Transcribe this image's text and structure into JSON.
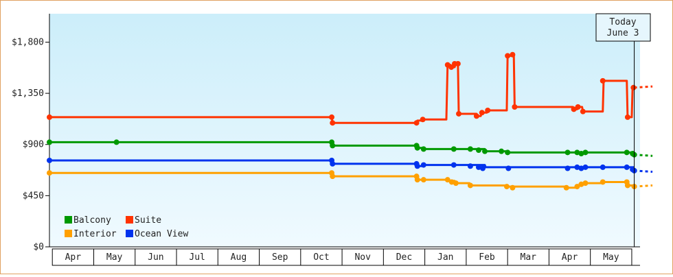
{
  "chart_data": {
    "type": "line",
    "title": "",
    "xlabel": "",
    "ylabel": "",
    "ylim": [
      0,
      2050
    ],
    "y_ticks": [
      0,
      450,
      900,
      1350,
      1800
    ],
    "y_tick_labels": [
      "$0",
      "$450",
      "$900",
      "$1,350",
      "$1,800"
    ],
    "x_domain": [
      -0.07,
      14.2
    ],
    "month_labels": [
      "Apr",
      "May",
      "Jun",
      "Jul",
      "Aug",
      "Sep",
      "Oct",
      "Nov",
      "Dec",
      "Jan",
      "Feb",
      "Mar",
      "Apr",
      "May"
    ],
    "today_label": [
      "Today",
      "June 3"
    ],
    "today_x": 14.06,
    "grid": false,
    "legend_placement": "bottom-left",
    "series": [
      {
        "name": "Suite",
        "color": "#ff3300",
        "points": [
          [
            -0.07,
            1140
          ],
          [
            6.75,
            1140
          ],
          [
            6.77,
            1090
          ],
          [
            8.8,
            1090
          ],
          [
            8.82,
            1110
          ],
          [
            8.95,
            1110
          ],
          [
            8.97,
            1120
          ],
          [
            9.52,
            1120
          ],
          [
            9.55,
            1600
          ],
          [
            9.62,
            1600
          ],
          [
            9.64,
            1580
          ],
          [
            9.72,
            1580
          ],
          [
            9.75,
            1610
          ],
          [
            9.8,
            1610
          ],
          [
            9.82,
            1170
          ],
          [
            10.25,
            1170
          ],
          [
            10.27,
            1150
          ],
          [
            10.35,
            1150
          ],
          [
            10.38,
            1180
          ],
          [
            10.5,
            1180
          ],
          [
            10.52,
            1200
          ],
          [
            10.98,
            1200
          ],
          [
            11.0,
            1680
          ],
          [
            11.1,
            1680
          ],
          [
            11.12,
            1690
          ],
          [
            11.15,
            1690
          ],
          [
            11.17,
            1230
          ],
          [
            12.58,
            1230
          ],
          [
            12.6,
            1210
          ],
          [
            12.68,
            1210
          ],
          [
            12.7,
            1230
          ],
          [
            12.8,
            1230
          ],
          [
            12.82,
            1190
          ],
          [
            13.3,
            1190
          ],
          [
            13.32,
            1460
          ],
          [
            13.88,
            1460
          ],
          [
            13.9,
            1140
          ],
          [
            14.0,
            1140
          ],
          [
            14.02,
            1400
          ],
          [
            14.06,
            1400
          ]
        ],
        "markers": [
          [
            -0.07,
            1140
          ],
          [
            6.75,
            1140
          ],
          [
            6.77,
            1090
          ],
          [
            8.8,
            1090
          ],
          [
            8.95,
            1120
          ],
          [
            9.55,
            1600
          ],
          [
            9.64,
            1580
          ],
          [
            9.72,
            1610
          ],
          [
            9.8,
            1610
          ],
          [
            9.82,
            1170
          ],
          [
            10.25,
            1150
          ],
          [
            10.38,
            1180
          ],
          [
            10.52,
            1200
          ],
          [
            11.0,
            1680
          ],
          [
            11.12,
            1690
          ],
          [
            11.17,
            1230
          ],
          [
            12.6,
            1210
          ],
          [
            12.7,
            1230
          ],
          [
            12.82,
            1190
          ],
          [
            13.3,
            1460
          ],
          [
            13.9,
            1140
          ],
          [
            14.04,
            1400
          ]
        ],
        "projection": [
          [
            14.06,
            1400
          ],
          [
            14.5,
            1410
          ]
        ]
      },
      {
        "name": "Balcony",
        "color": "#009900",
        "points": [
          [
            -0.07,
            920
          ],
          [
            6.75,
            920
          ],
          [
            6.77,
            890
          ],
          [
            8.8,
            890
          ],
          [
            8.82,
            870
          ],
          [
            8.95,
            870
          ],
          [
            8.97,
            860
          ],
          [
            10.45,
            860
          ],
          [
            10.47,
            840
          ],
          [
            11.0,
            840
          ],
          [
            11.02,
            830
          ],
          [
            14.06,
            830
          ]
        ],
        "markers": [
          [
            -0.07,
            920
          ],
          [
            1.55,
            920
          ],
          [
            6.75,
            920
          ],
          [
            6.77,
            890
          ],
          [
            8.8,
            890
          ],
          [
            8.82,
            870
          ],
          [
            8.97,
            860
          ],
          [
            9.7,
            860
          ],
          [
            10.1,
            860
          ],
          [
            10.3,
            850
          ],
          [
            10.45,
            840
          ],
          [
            10.85,
            840
          ],
          [
            11.0,
            830
          ],
          [
            12.45,
            830
          ],
          [
            12.68,
            830
          ],
          [
            12.78,
            820
          ],
          [
            12.88,
            830
          ],
          [
            13.88,
            830
          ],
          [
            14.02,
            820
          ],
          [
            14.06,
            810
          ]
        ],
        "projection": [
          [
            14.06,
            810
          ],
          [
            14.5,
            800
          ]
        ]
      },
      {
        "name": "Ocean View",
        "color": "#0033ee",
        "points": [
          [
            -0.07,
            760
          ],
          [
            6.75,
            760
          ],
          [
            6.77,
            730
          ],
          [
            8.8,
            730
          ],
          [
            8.82,
            710
          ],
          [
            8.95,
            710
          ],
          [
            8.97,
            720
          ],
          [
            10.45,
            720
          ],
          [
            10.47,
            700
          ],
          [
            14.06,
            700
          ]
        ],
        "markers": [
          [
            -0.07,
            760
          ],
          [
            6.75,
            760
          ],
          [
            6.77,
            730
          ],
          [
            8.8,
            730
          ],
          [
            8.82,
            710
          ],
          [
            8.97,
            720
          ],
          [
            9.7,
            720
          ],
          [
            10.1,
            710
          ],
          [
            10.3,
            700
          ],
          [
            10.4,
            690
          ],
          [
            11.02,
            690
          ],
          [
            12.45,
            690
          ],
          [
            12.68,
            700
          ],
          [
            12.78,
            690
          ],
          [
            12.88,
            700
          ],
          [
            13.3,
            700
          ],
          [
            13.88,
            700
          ],
          [
            14.02,
            680
          ],
          [
            14.06,
            670
          ]
        ],
        "projection": [
          [
            14.06,
            670
          ],
          [
            14.5,
            660
          ]
        ]
      },
      {
        "name": "Interior",
        "color": "#ffa000",
        "points": [
          [
            -0.07,
            650
          ],
          [
            6.75,
            650
          ],
          [
            6.77,
            620
          ],
          [
            8.8,
            620
          ],
          [
            8.82,
            590
          ],
          [
            9.55,
            590
          ],
          [
            9.57,
            580
          ],
          [
            9.72,
            580
          ],
          [
            9.75,
            560
          ],
          [
            10.08,
            560
          ],
          [
            10.1,
            540
          ],
          [
            10.98,
            540
          ],
          [
            11.0,
            530
          ],
          [
            12.4,
            530
          ],
          [
            12.42,
            520
          ],
          [
            12.65,
            520
          ],
          [
            12.68,
            540
          ],
          [
            12.8,
            540
          ],
          [
            12.82,
            560
          ],
          [
            13.28,
            560
          ],
          [
            13.3,
            570
          ],
          [
            13.88,
            570
          ],
          [
            13.9,
            540
          ],
          [
            14.06,
            540
          ]
        ],
        "markers": [
          [
            -0.07,
            650
          ],
          [
            6.75,
            650
          ],
          [
            6.77,
            620
          ],
          [
            8.8,
            620
          ],
          [
            8.82,
            590
          ],
          [
            8.97,
            590
          ],
          [
            9.55,
            590
          ],
          [
            9.65,
            570
          ],
          [
            9.75,
            560
          ],
          [
            10.1,
            540
          ],
          [
            10.98,
            530
          ],
          [
            11.12,
            520
          ],
          [
            12.42,
            520
          ],
          [
            12.68,
            530
          ],
          [
            12.78,
            550
          ],
          [
            12.88,
            560
          ],
          [
            13.3,
            570
          ],
          [
            13.88,
            570
          ],
          [
            13.9,
            540
          ],
          [
            14.06,
            530
          ]
        ],
        "projection": [
          [
            14.06,
            530
          ],
          [
            14.5,
            540
          ]
        ]
      }
    ]
  }
}
